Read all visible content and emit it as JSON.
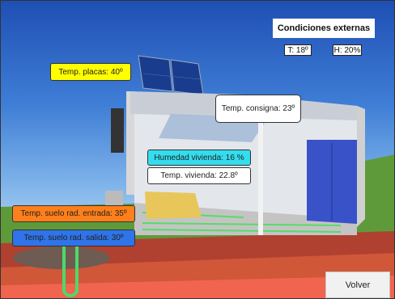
{
  "external": {
    "title": "Condiciones externas",
    "temperature": "T: 18º",
    "humidity": "H: 20%"
  },
  "labels": {
    "panels_temp": "Temp. placas: 40º",
    "setpoint_temp": "Temp. consigna: 23º",
    "home_humidity": "Humedad vivienda: 16 %",
    "home_temp": "Temp. vivienda: 22.8º",
    "floor_in_temp": "Temp. suelo rad. entrada: 35º",
    "floor_out_temp": "Temp. suelo rad. salida: 30º"
  },
  "buttons": {
    "back": "Volver"
  },
  "colors": {
    "panels_temp": "#ffff00",
    "home_humidity": "#33ddee",
    "floor_in_temp": "#ff7f1a",
    "floor_out_temp": "#2f74e8",
    "setpoint_temp": "#ffffff",
    "home_temp": "#ffffff"
  }
}
